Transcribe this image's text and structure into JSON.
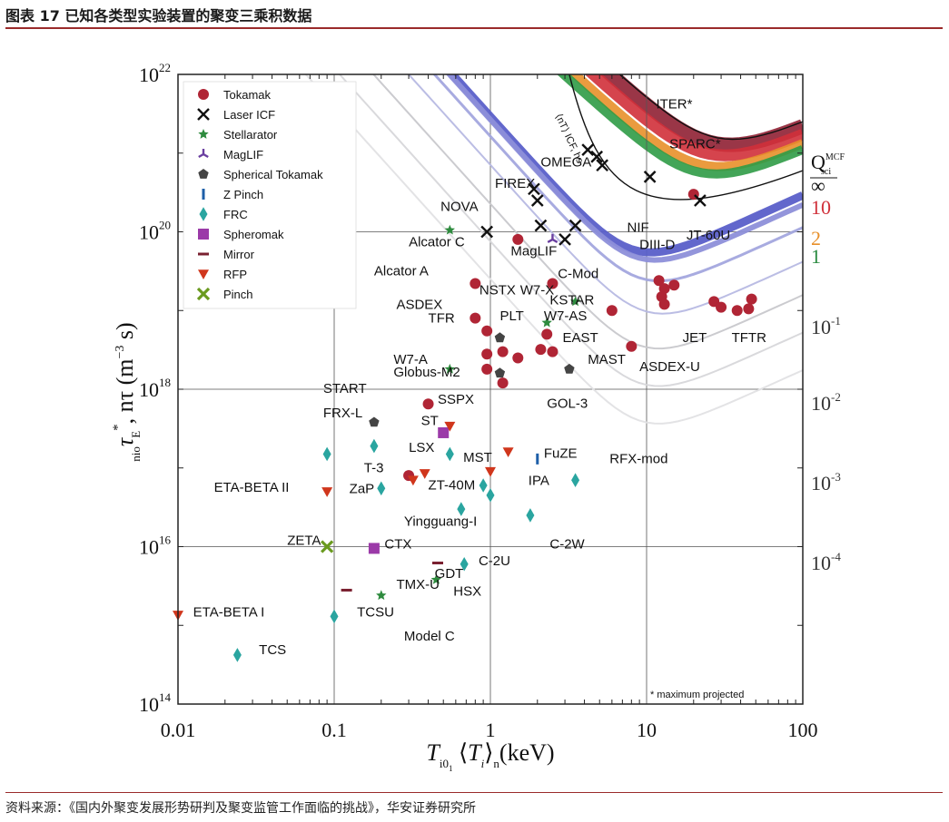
{
  "figure": {
    "title": "图表 17 已知各类型实验装置的聚变三乘积数据",
    "source": "资料来源：《国内外聚变发展形势研判及聚变监管工作面临的挑战》，华安证券研究所"
  },
  "chart_data": {
    "type": "scatter",
    "x_scale": "log",
    "y_scale": "log",
    "xlim": [
      0.01,
      100
    ],
    "ylim": [
      100000000000000.0,
      1e+22
    ],
    "xlabel": "T_i0,⟨T_i⟩_n (keV)",
    "ylabel": "n_i0 τ_E*, nτ (m⁻³ s)",
    "grid": true,
    "legend_position": "top-left",
    "x_ticks": [
      "0.01",
      "0.1",
      "1",
      "10",
      "100"
    ],
    "y_ticks": [
      {
        "mantissa": "10",
        "exp": "14"
      },
      {
        "mantissa": "10",
        "exp": "16"
      },
      {
        "mantissa": "10",
        "exp": "18"
      },
      {
        "mantissa": "10",
        "exp": "20"
      },
      {
        "mantissa": "10",
        "exp": "22"
      }
    ],
    "legend": [
      {
        "name": "Tokamak",
        "marker": "circle",
        "color": "#b02535"
      },
      {
        "name": "Laser ICF",
        "marker": "x",
        "color": "#111111"
      },
      {
        "name": "Stellarator",
        "marker": "star",
        "color": "#2e8b3e"
      },
      {
        "name": "MagLIF",
        "marker": "tri",
        "color": "#6a3fa0"
      },
      {
        "name": "Spherical Tokamak",
        "marker": "pentagon",
        "color": "#444444"
      },
      {
        "name": "Z Pinch",
        "marker": "vbar",
        "color": "#1e5fa8"
      },
      {
        "name": "FRC",
        "marker": "diamond",
        "color": "#2aa5a0"
      },
      {
        "name": "Spheromak",
        "marker": "square",
        "color": "#9b3aa8"
      },
      {
        "name": "Mirror",
        "marker": "hbar",
        "color": "#7a2030"
      },
      {
        "name": "RFP",
        "marker": "triangle-down",
        "color": "#d0361c"
      },
      {
        "name": "Pinch",
        "marker": "cross",
        "color": "#6a9a1f"
      }
    ],
    "q_labels": {
      "header": "Q",
      "header_sup": "MCF",
      "header_sub": "sci",
      "values": [
        {
          "text": "∞",
          "color": "#111111"
        },
        {
          "text": "10",
          "color": "#d0303a"
        },
        {
          "text": "2",
          "color": "#e8902a"
        },
        {
          "text": "1",
          "color": "#2a8a40"
        },
        {
          "text": "10",
          "sup": "-1",
          "color": "#333333"
        },
        {
          "text": "10",
          "sup": "-2",
          "color": "#333333"
        },
        {
          "text": "10",
          "sup": "-3",
          "color": "#333333"
        },
        {
          "text": "10",
          "sup": "-4",
          "color": "#333333"
        }
      ]
    },
    "note": "* maximum projected",
    "points": [
      {
        "name": "Tokamak",
        "x": 1.5,
        "y": 8e+19
      },
      {
        "name": "Tokamak",
        "x": 0.8,
        "y": 2.2e+19
      },
      {
        "name": "Tokamak",
        "x": 2.5,
        "y": 2.2e+19
      },
      {
        "name": "Tokamak",
        "x": 0.8,
        "y": 8e+18
      },
      {
        "name": "Tokamak",
        "x": 0.95,
        "y": 5.5e+18
      },
      {
        "name": "Tokamak",
        "x": 6,
        "y": 1e+19
      },
      {
        "name": "Tokamak",
        "x": 2.3,
        "y": 5e+18
      },
      {
        "name": "Tokamak",
        "x": 2.1,
        "y": 3.2e+18
      },
      {
        "name": "Tokamak",
        "x": 2.5,
        "y": 3e+18
      },
      {
        "name": "Tokamak",
        "x": 1.2,
        "y": 3e+18
      },
      {
        "name": "Tokamak",
        "x": 0.95,
        "y": 2.8e+18
      },
      {
        "name": "Tokamak",
        "x": 1.5,
        "y": 2.5e+18
      },
      {
        "name": "Tokamak",
        "x": 0.95,
        "y": 1.8e+18
      },
      {
        "name": "Tokamak",
        "x": 1.2,
        "y": 1.2e+18
      },
      {
        "name": "Tokamak",
        "x": 0.4,
        "y": 6.5e+17
      },
      {
        "name": "Tokamak",
        "x": 0.3,
        "y": 8e+16
      },
      {
        "name": "Tokamak",
        "x": 8,
        "y": 3.5e+18
      },
      {
        "name": "Tokamak",
        "x": 12,
        "y": 2.4e+19
      },
      {
        "name": "Tokamak",
        "x": 13,
        "y": 1.9e+19
      },
      {
        "name": "Tokamak",
        "x": 12.5,
        "y": 1.5e+19
      },
      {
        "name": "Tokamak",
        "x": 13,
        "y": 1.2e+19
      },
      {
        "name": "Tokamak",
        "x": 15,
        "y": 2.1e+19
      },
      {
        "name": "Tokamak",
        "x": 27,
        "y": 1.3e+19
      },
      {
        "name": "Tokamak",
        "x": 30,
        "y": 1.1e+19
      },
      {
        "name": "Tokamak",
        "x": 38,
        "y": 1e+19
      },
      {
        "name": "Tokamak",
        "x": 45,
        "y": 1.05e+19
      },
      {
        "name": "Tokamak",
        "x": 47,
        "y": 1.4e+19
      },
      {
        "name": "Tokamak",
        "x": 20,
        "y": 3e+20
      },
      {
        "name": "Laser ICF",
        "x": 0.95,
        "y": 1e+20
      },
      {
        "name": "Laser ICF",
        "x": 1.9,
        "y": 3.5e+20
      },
      {
        "name": "Laser ICF",
        "x": 2.0,
        "y": 2.5e+20
      },
      {
        "name": "Laser ICF",
        "x": 2.1,
        "y": 1.2e+20
      },
      {
        "name": "Laser ICF",
        "x": 3.0,
        "y": 8e+19
      },
      {
        "name": "Laser ICF",
        "x": 3.5,
        "y": 1.2e+20
      },
      {
        "name": "Laser ICF",
        "x": 4.2,
        "y": 1.1e+21
      },
      {
        "name": "Laser ICF",
        "x": 4.8,
        "y": 9e+20
      },
      {
        "name": "Laser ICF",
        "x": 5.2,
        "y": 7e+20
      },
      {
        "name": "Laser ICF",
        "x": 10.5,
        "y": 5e+20
      },
      {
        "name": "Laser ICF",
        "x": 22,
        "y": 2.5e+20
      },
      {
        "name": "Stellarator",
        "x": 0.55,
        "y": 1.05e+20
      },
      {
        "name": "Stellarator",
        "x": 3.5,
        "y": 1.3e+19
      },
      {
        "name": "Stellarator",
        "x": 2.3,
        "y": 7e+18
      },
      {
        "name": "Stellarator",
        "x": 0.55,
        "y": 1.8e+18
      },
      {
        "name": "Stellarator",
        "x": 0.45,
        "y": 3800000000000000.0
      },
      {
        "name": "Stellarator",
        "x": 0.2,
        "y": 2400000000000000.0
      },
      {
        "name": "MagLIF",
        "x": 2.5,
        "y": 8e+19
      },
      {
        "name": "Spherical Tokamak",
        "x": 1.15,
        "y": 4.5e+18
      },
      {
        "name": "Spherical Tokamak",
        "x": 1.15,
        "y": 1.6e+18
      },
      {
        "name": "Spherical Tokamak",
        "x": 3.2,
        "y": 1.8e+18
      },
      {
        "name": "Spherical Tokamak",
        "x": 0.18,
        "y": 3.8e+17
      },
      {
        "name": "Z Pinch",
        "x": 2.0,
        "y": 1.3e+17
      },
      {
        "name": "FRC",
        "x": 0.09,
        "y": 1.5e+17
      },
      {
        "name": "FRC",
        "x": 0.18,
        "y": 1.9e+17
      },
      {
        "name": "FRC",
        "x": 0.55,
        "y": 1.5e+17
      },
      {
        "name": "FRC",
        "x": 0.2,
        "y": 5.5e+16
      },
      {
        "name": "FRC",
        "x": 0.9,
        "y": 6e+16
      },
      {
        "name": "FRC",
        "x": 1.0,
        "y": 4.5e+16
      },
      {
        "name": "FRC",
        "x": 3.5,
        "y": 7e+16
      },
      {
        "name": "FRC",
        "x": 1.8,
        "y": 2.5e+16
      },
      {
        "name": "FRC",
        "x": 0.65,
        "y": 3e+16
      },
      {
        "name": "FRC",
        "x": 0.68,
        "y": 6000000000000000.0
      },
      {
        "name": "FRC",
        "x": 0.1,
        "y": 1300000000000000.0
      },
      {
        "name": "FRC",
        "x": 0.024,
        "y": 420000000000000.0
      },
      {
        "name": "Spheromak",
        "x": 0.5,
        "y": 2.8e+17
      },
      {
        "name": "Spheromak",
        "x": 0.18,
        "y": 9500000000000000.0
      },
      {
        "name": "Mirror",
        "x": 0.46,
        "y": 6200000000000000.0
      },
      {
        "name": "Mirror",
        "x": 0.12,
        "y": 2800000000000000.0
      },
      {
        "name": "RFP",
        "x": 0.09,
        "y": 5e+16
      },
      {
        "name": "RFP",
        "x": 0.32,
        "y": 7e+16
      },
      {
        "name": "RFP",
        "x": 0.38,
        "y": 8.5e+16
      },
      {
        "name": "RFP",
        "x": 0.55,
        "y": 3.4e+17
      },
      {
        "name": "RFP",
        "x": 1.0,
        "y": 9e+16
      },
      {
        "name": "RFP",
        "x": 1.3,
        "y": 1.6e+17
      },
      {
        "name": "RFP",
        "x": 0.01,
        "y": 1350000000000000.0
      },
      {
        "name": "Pinch",
        "x": 0.09,
        "y": 1e+16
      }
    ],
    "labels": [
      {
        "text": "LHD",
        "x": 0.016,
        "y": 1.1e+20
      },
      {
        "text": "NOVA",
        "x": 0.48,
        "y": 1.85e+20
      },
      {
        "text": "FIREX",
        "x": 1.07,
        "y": 3.6e+20
      },
      {
        "text": "OMEGA",
        "x": 2.1,
        "y": 6.8e+20
      },
      {
        "text": "ITER*",
        "x": 11.5,
        "y": 3.7e+21
      },
      {
        "text": "SPARC*",
        "x": 14,
        "y": 1.15e+21
      },
      {
        "text": "NIF",
        "x": 7.5,
        "y": 1e+20
      },
      {
        "text": "Alcator C",
        "x": 0.3,
        "y": 6.5e+19
      },
      {
        "text": "MagLIF",
        "x": 1.35,
        "y": 5e+19
      },
      {
        "text": "Alcator A",
        "x": 0.18,
        "y": 2.8e+19
      },
      {
        "text": "C-Mod",
        "x": 2.7,
        "y": 2.6e+19
      },
      {
        "text": "DIII-D",
        "x": 9,
        "y": 6e+19
      },
      {
        "text": "JT-60U",
        "x": 18,
        "y": 8e+19
      },
      {
        "text": "NSTX",
        "x": 0.85,
        "y": 1.6e+19
      },
      {
        "text": "W7-X",
        "x": 1.55,
        "y": 1.6e+19
      },
      {
        "text": "KSTAR",
        "x": 2.4,
        "y": 1.2e+19
      },
      {
        "text": "ASDEX",
        "x": 0.25,
        "y": 1.05e+19
      },
      {
        "text": "PLT",
        "x": 1.15,
        "y": 7.5e+18
      },
      {
        "text": "W7-AS",
        "x": 2.2,
        "y": 7.5e+18
      },
      {
        "text": "TFR",
        "x": 0.4,
        "y": 7e+18
      },
      {
        "text": "EAST",
        "x": 2.9,
        "y": 4e+18
      },
      {
        "text": "JET",
        "x": 17,
        "y": 4e+18
      },
      {
        "text": "TFTR",
        "x": 35,
        "y": 4e+18
      },
      {
        "text": "MAST",
        "x": 4.2,
        "y": 2.1e+18
      },
      {
        "text": "ASDEX-U",
        "x": 9,
        "y": 1.7e+18
      },
      {
        "text": "W7-A",
        "x": 0.24,
        "y": 2.1e+18
      },
      {
        "text": "Globus-M2",
        "x": 0.24,
        "y": 1.45e+18
      },
      {
        "text": "START",
        "x": 0.085,
        "y": 9e+17
      },
      {
        "text": "SSPX",
        "x": 0.46,
        "y": 6.5e+17
      },
      {
        "text": "GOL-3",
        "x": 2.3,
        "y": 5.8e+17
      },
      {
        "text": "FRX-L",
        "x": 0.085,
        "y": 4.4e+17
      },
      {
        "text": "ST",
        "x": 0.36,
        "y": 3.5e+17
      },
      {
        "text": "LSX",
        "x": 0.3,
        "y": 1.6e+17
      },
      {
        "text": "FuZE",
        "x": 2.2,
        "y": 1.35e+17
      },
      {
        "text": "MST",
        "x": 0.67,
        "y": 1.2e+17
      },
      {
        "text": "RFX-mod",
        "x": 5.8,
        "y": 1.15e+17
      },
      {
        "text": "T-3",
        "x": 0.155,
        "y": 8.8e+16
      },
      {
        "text": "IPA",
        "x": 1.75,
        "y": 6.1e+16
      },
      {
        "text": "ETA-BETA II",
        "x": 0.017,
        "y": 5e+16
      },
      {
        "text": "ZaP",
        "x": 0.125,
        "y": 4.8e+16
      },
      {
        "text": "ZT-40M",
        "x": 0.4,
        "y": 5.3e+16
      },
      {
        "text": "Yingguang-I",
        "x": 0.28,
        "y": 1.85e+16
      },
      {
        "text": "ZETA",
        "x": 0.05,
        "y": 1.05e+16
      },
      {
        "text": "CTX",
        "x": 0.21,
        "y": 9500000000000000.0
      },
      {
        "text": "C-2W",
        "x": 2.4,
        "y": 9500000000000000.0
      },
      {
        "text": "C-2U",
        "x": 0.84,
        "y": 5800000000000000.0
      },
      {
        "text": "GDT",
        "x": 0.44,
        "y": 4000000000000000.0
      },
      {
        "text": "TMX-U",
        "x": 0.25,
        "y": 2900000000000000.0
      },
      {
        "text": "HSX",
        "x": 0.58,
        "y": 2400000000000000.0
      },
      {
        "text": "ETA-BETA I",
        "x": 0.0125,
        "y": 1300000000000000.0
      },
      {
        "text": "TCSU",
        "x": 0.14,
        "y": 1300000000000000.0
      },
      {
        "text": "Model C",
        "x": 0.28,
        "y": 640000000000000.0
      },
      {
        "text": "TCS",
        "x": 0.033,
        "y": 430000000000000.0
      }
    ]
  }
}
